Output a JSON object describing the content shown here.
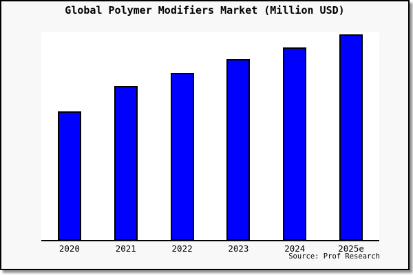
{
  "window": {
    "background_color": "#f8f8f8",
    "frame_border_color": "#000000",
    "plot_background_color": "#ffffff"
  },
  "chart_data": {
    "type": "bar",
    "title": "Global Polymer Modifiers Market (Million USD)",
    "categories": [
      "2020",
      "2021",
      "2022",
      "2023",
      "2024",
      "2025e"
    ],
    "values": [
      62.7,
      75.0,
      81.3,
      88.0,
      93.7,
      100.0
    ],
    "value_note": "relative index (2025e = 100); chart displays no y-axis tick labels or gridlines",
    "xlabel": "",
    "ylabel": "",
    "ylim": [
      0,
      100
    ],
    "y_axis_labels": "none",
    "grid": "off",
    "legend": "none",
    "bar_color": "#0000ff",
    "bar_edge_color": "#000000"
  },
  "source": {
    "text": "Source: Prof Research"
  }
}
